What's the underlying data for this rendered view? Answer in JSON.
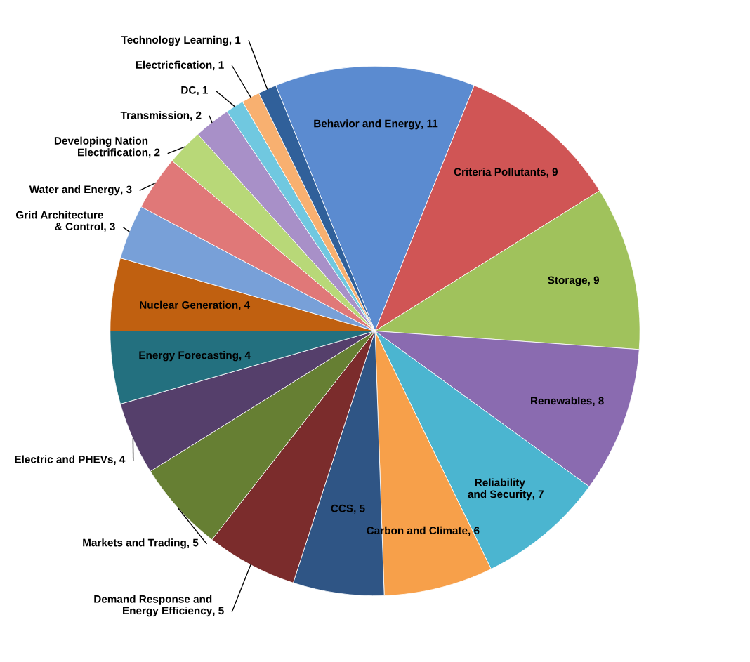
{
  "chart_data": {
    "type": "pie",
    "categories": [
      "Behavior and Energy",
      "Criteria Pollutants",
      "Storage",
      "Renewables",
      "Reliability and Security",
      "Carbon and Climate",
      "CCS",
      "Demand Response and Energy Efficiency",
      "Markets and Trading",
      "Electric and PHEVs",
      "Energy Forecasting",
      "Nuclear Generation",
      "Grid Architecture & Control",
      "Water and Energy",
      "Developing Nation Electrification",
      "Transmission",
      "DC",
      "Electricfication",
      "Technology Learning"
    ],
    "values": [
      11,
      9,
      9,
      8,
      7,
      6,
      5,
      5,
      5,
      4,
      4,
      4,
      3,
      3,
      2,
      2,
      1,
      1,
      1
    ],
    "colors": [
      "#5b8bd0",
      "#d05555",
      "#a0c25c",
      "#8a6bb0",
      "#4bb5d0",
      "#f7a04a",
      "#2f5585",
      "#7b2c2c",
      "#667f33",
      "#553f6b",
      "#23707f",
      "#c06010",
      "#78a0d8",
      "#e07878",
      "#b8d878",
      "#a890c8",
      "#70c8e0",
      "#f8b070",
      "#30609a"
    ],
    "value_labels": [
      ", 11",
      ", 9",
      ", 9",
      ", 8",
      ", 7",
      ", 6",
      ", 5",
      ", 5",
      ", 5",
      ", 4",
      ", 4",
      ", 4",
      ", 3",
      ", 3",
      ", 2",
      ", 2",
      ", 1",
      ", 1",
      ", 1"
    ],
    "legend": false
  }
}
